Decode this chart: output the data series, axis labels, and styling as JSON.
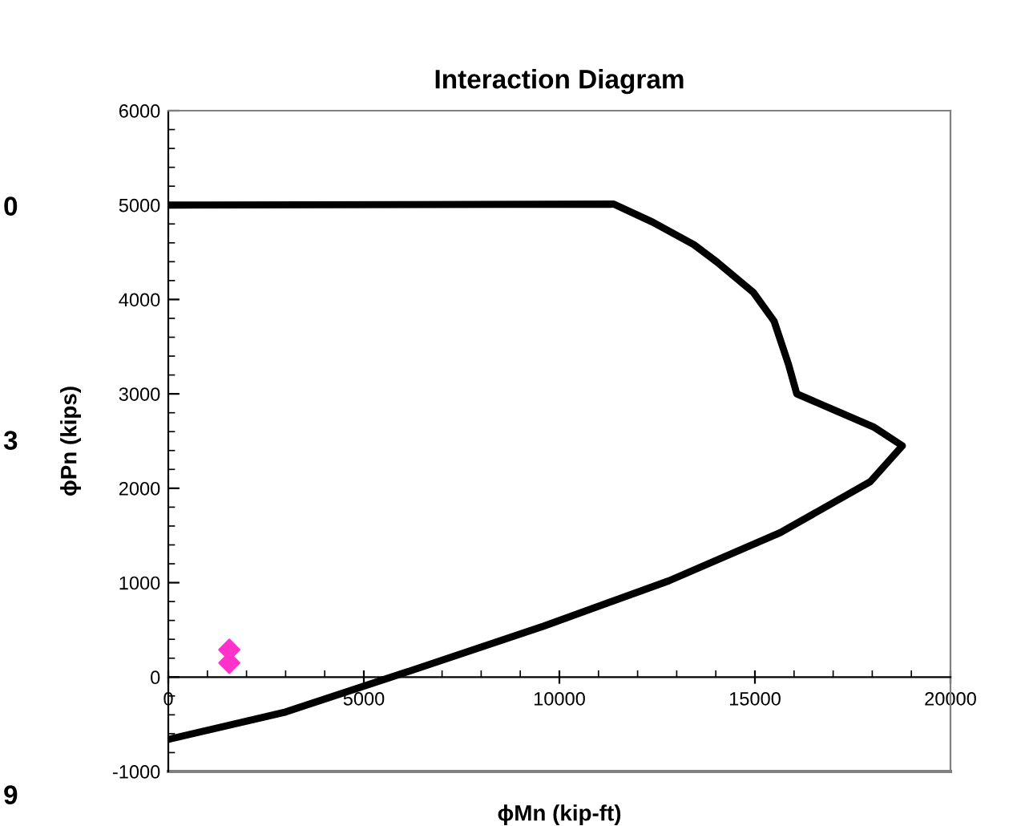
{
  "chart_data": {
    "type": "line",
    "title": "Interaction Diagram",
    "xlabel": "ϕMn (kip-ft)",
    "ylabel": "ϕPn (kips)",
    "xlim": [
      0,
      20000
    ],
    "xticks": [
      0,
      5000,
      10000,
      15000,
      20000
    ],
    "ylim": [
      -1000,
      6000
    ],
    "yticks": [
      -1000,
      0,
      1000,
      2000,
      3000,
      4000,
      5000,
      6000
    ],
    "grid": false,
    "legend": false,
    "series": [
      {
        "color": "#000000",
        "marker": "none",
        "x": [
          0,
          3000,
          6000,
          9600,
          12800,
          15650,
          17950,
          18770,
          18030,
          16070,
          15860,
          15490,
          14960,
          14020,
          13440,
          12380,
          11390,
          0
        ],
        "values": [
          -660,
          -370,
          40,
          540,
          1020,
          1530,
          2070,
          2450,
          2650,
          3000,
          3310,
          3770,
          4075,
          4400,
          4580,
          4820,
          5010,
          5000
        ]
      },
      {
        "type": "scatter",
        "color": "#ff33cc",
        "marker": "diamond",
        "x": [
          1560,
          1560
        ],
        "values": [
          290,
          150
        ]
      }
    ],
    "annotations": [
      "0",
      "3",
      "9"
    ]
  }
}
